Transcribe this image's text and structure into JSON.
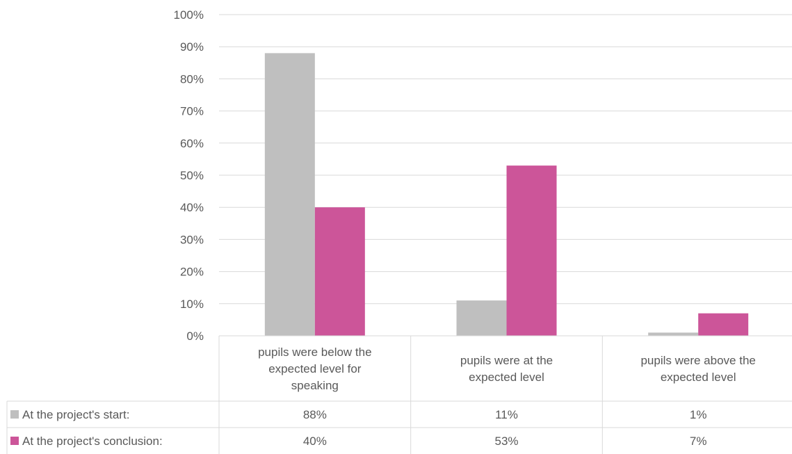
{
  "chart_data": {
    "type": "bar",
    "categories": [
      [
        "pupils were below the",
        "expected level for",
        "speaking"
      ],
      [
        "pupils were at the",
        "expected level"
      ],
      [
        "pupils were above the",
        "expected level"
      ]
    ],
    "series": [
      {
        "name": "At the project's start:",
        "values": [
          88,
          11,
          1
        ],
        "labels": [
          "88%",
          "11%",
          "1%"
        ],
        "color": "#bfbfbf"
      },
      {
        "name": "At the project's conclusion:",
        "values": [
          40,
          53,
          7
        ],
        "labels": [
          "40%",
          "53%",
          "7%"
        ],
        "color": "#cc5599"
      }
    ],
    "y_ticks": [
      "0%",
      "10%",
      "20%",
      "30%",
      "40%",
      "50%",
      "60%",
      "70%",
      "80%",
      "90%",
      "100%"
    ],
    "ylim": [
      0,
      100
    ],
    "grid": true,
    "legend": "data-table"
  },
  "colors": {
    "grid": "#d9d9d9",
    "text": "#595959"
  }
}
